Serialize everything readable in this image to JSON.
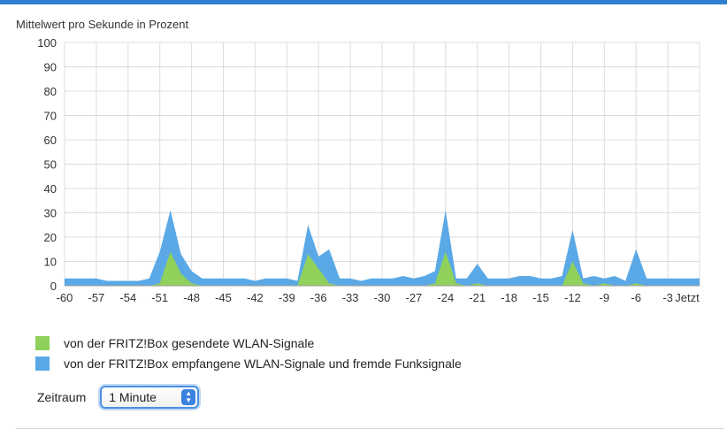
{
  "chart_data": {
    "type": "area",
    "ylabel": "Mittelwert pro Sekunde in Prozent",
    "ylim": [
      0,
      100
    ],
    "xlim": [
      -60,
      0
    ],
    "yticks": [
      "100",
      "90",
      "80",
      "70",
      "60",
      "50",
      "40",
      "30",
      "20",
      "10",
      "0"
    ],
    "xticks": [
      "-60",
      "-57",
      "-54",
      "-51",
      "-48",
      "-45",
      "-42",
      "-39",
      "-36",
      "-33",
      "-30",
      "-27",
      "-24",
      "-21",
      "-18",
      "-15",
      "-12",
      "-9",
      "-6",
      "-3",
      "Jetzt"
    ],
    "grid": true,
    "x": [
      -60,
      -59,
      -58,
      -57,
      -56,
      -55,
      -54,
      -53,
      -52,
      -51,
      -50,
      -49,
      -48,
      -47,
      -46,
      -45,
      -44,
      -43,
      -42,
      -41,
      -40,
      -39,
      -38,
      -37,
      -36,
      -35,
      -34,
      -33,
      -32,
      -31,
      -30,
      -29,
      -28,
      -27,
      -26,
      -25,
      -24,
      -23,
      -22,
      -21,
      -20,
      -19,
      -18,
      -17,
      -16,
      -15,
      -14,
      -13,
      -12,
      -11,
      -10,
      -9,
      -8,
      -7,
      -6,
      -5,
      -4,
      -3,
      -2,
      -1,
      0
    ],
    "series": [
      {
        "name": "von der FRITZ!Box gesendete WLAN-Signale",
        "color": "#8fd15b",
        "values": [
          0,
          0,
          0,
          0,
          0,
          0,
          0,
          0,
          0,
          1,
          14,
          5,
          1,
          0,
          0,
          0,
          0,
          0,
          0,
          0,
          0,
          0,
          0,
          13,
          7,
          1,
          0,
          0,
          0,
          0,
          0,
          0,
          0,
          0,
          0,
          1,
          14,
          1,
          0,
          1,
          0,
          0,
          0,
          0,
          0,
          0,
          0,
          0,
          10,
          1,
          0,
          1,
          0,
          0,
          1,
          0,
          0,
          0,
          0,
          0,
          0
        ]
      },
      {
        "name": "von der FRITZ!Box empfangene WLAN-Signale und fremde Funksignale",
        "color": "#5aa9e6",
        "values": [
          3,
          3,
          3,
          3,
          2,
          2,
          2,
          2,
          3,
          14,
          31,
          13,
          6,
          3,
          3,
          3,
          3,
          3,
          2,
          3,
          3,
          3,
          2,
          25,
          12,
          15,
          3,
          3,
          2,
          3,
          3,
          3,
          4,
          3,
          4,
          6,
          31,
          3,
          3,
          9,
          3,
          3,
          3,
          4,
          4,
          3,
          3,
          4,
          23,
          3,
          4,
          3,
          4,
          2,
          15,
          3,
          3,
          3,
          3,
          3,
          3
        ]
      }
    ]
  },
  "legend": {
    "items": [
      {
        "label": "von der FRITZ!Box gesendete WLAN-Signale",
        "color": "#8fd15b"
      },
      {
        "label": "von der FRITZ!Box empfangene WLAN-Signale und fremde Funksignale",
        "color": "#5aa9e6"
      }
    ]
  },
  "controls": {
    "zeitraum_label": "Zeitraum",
    "zeitraum_value": "1 Minute"
  },
  "colors": {
    "accent": "#2f7fd0",
    "grid": "#dcdcdc"
  }
}
